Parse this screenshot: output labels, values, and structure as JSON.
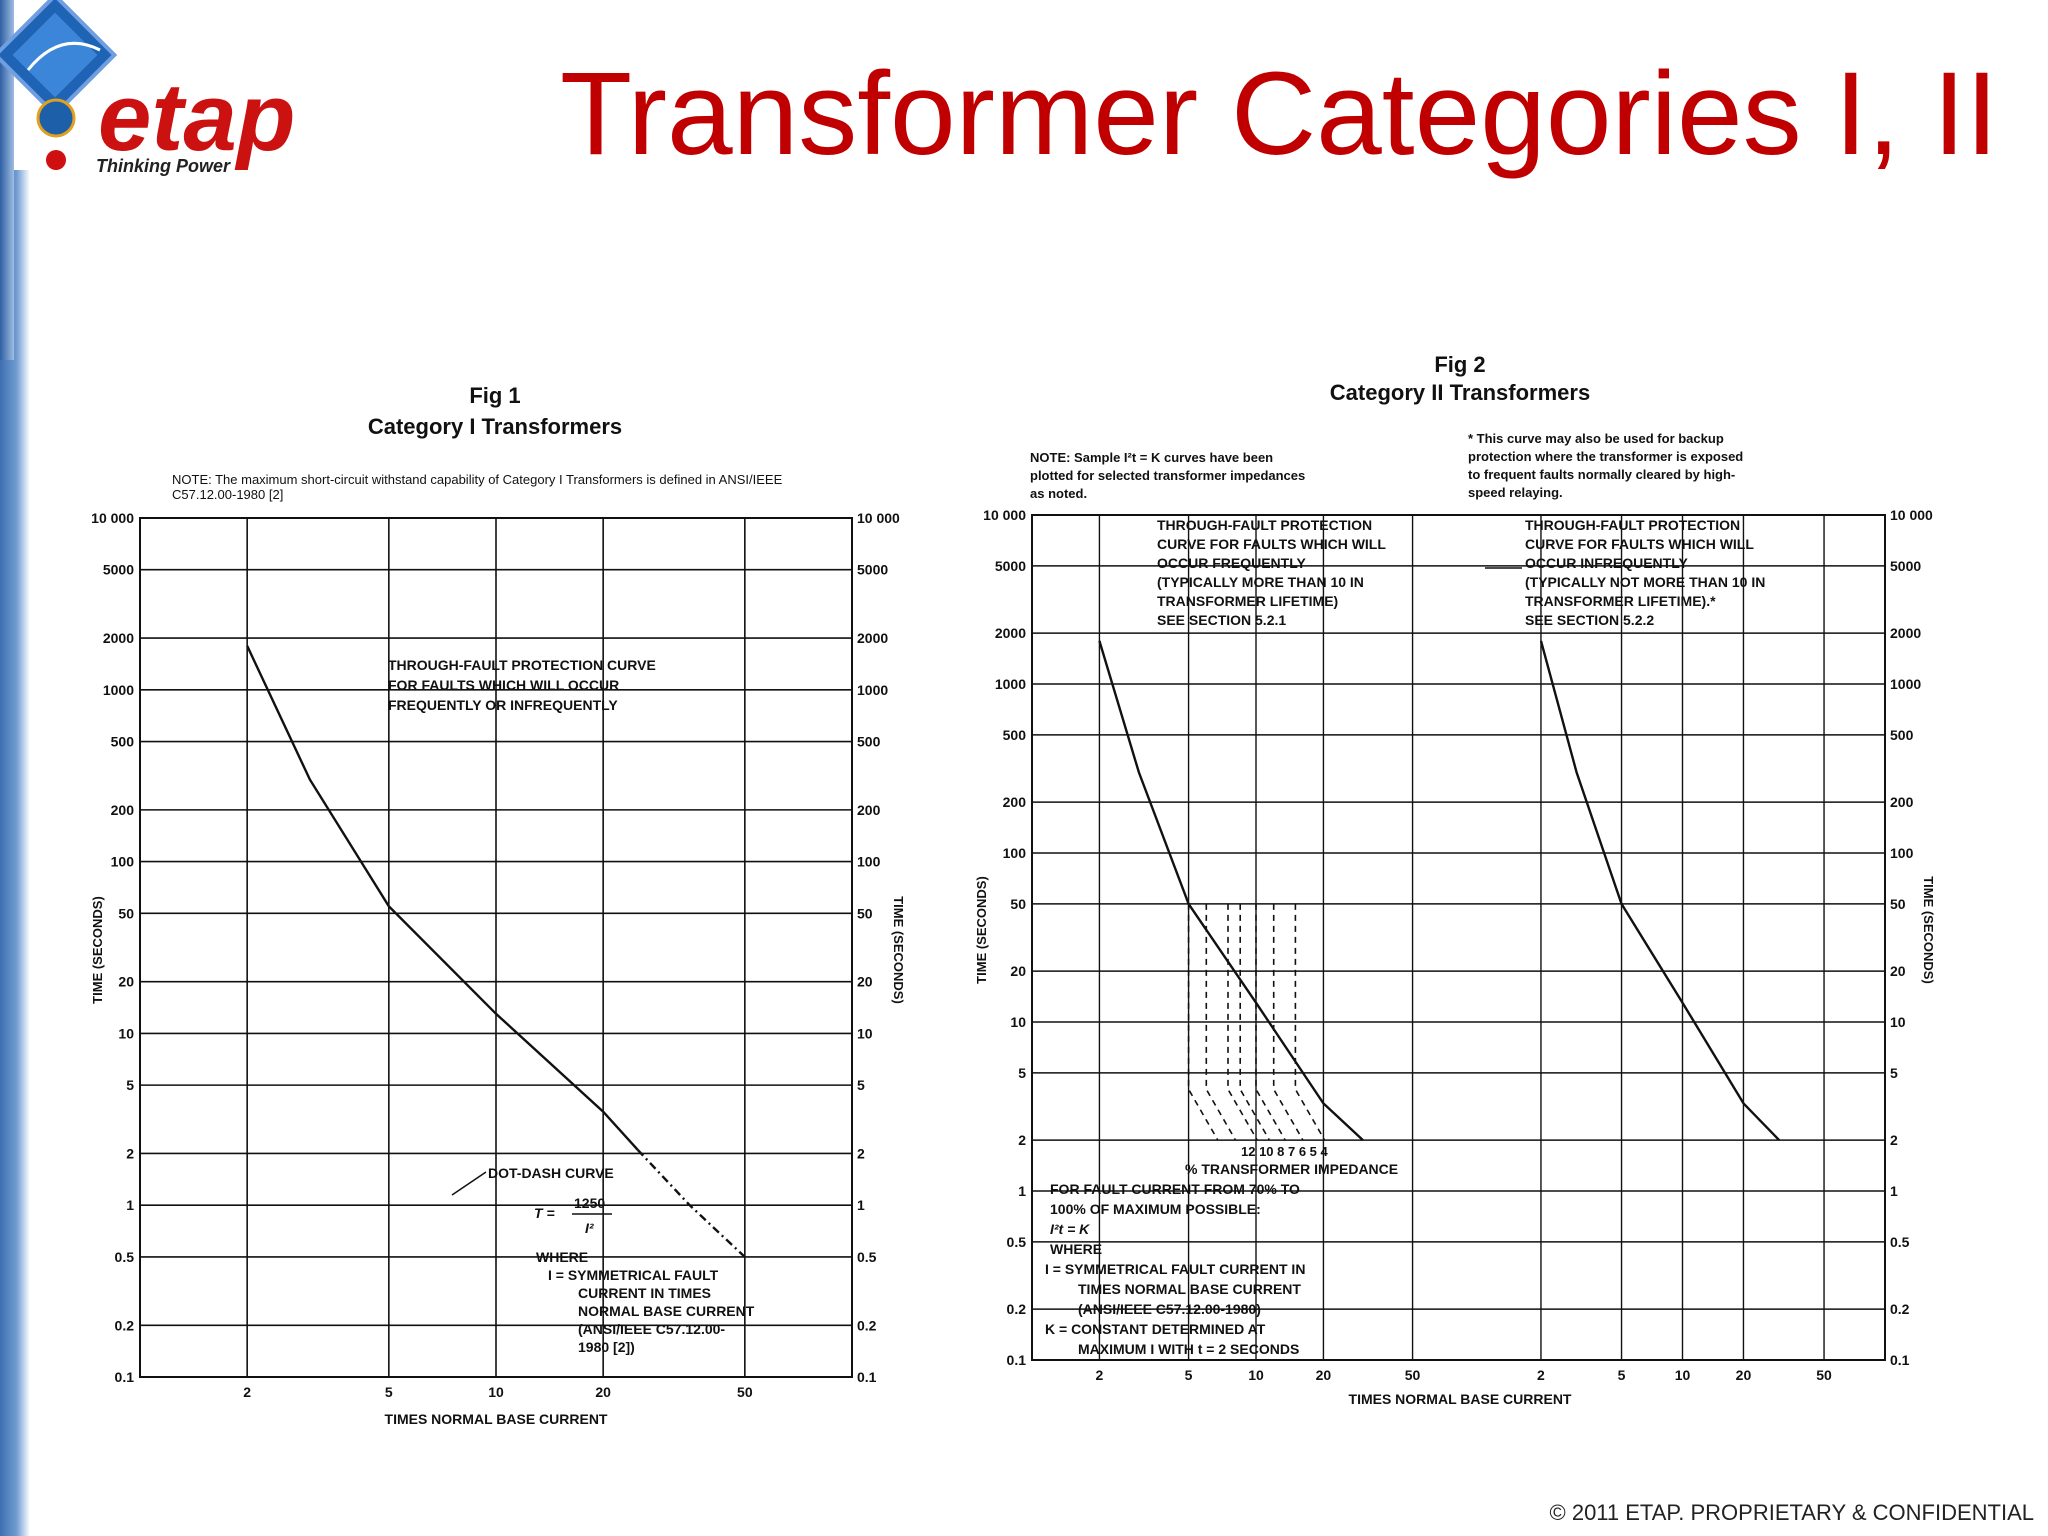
{
  "slide": {
    "title": "Transformer Categories I, II",
    "footer": "© 2011 ETAP. PROPRIETARY & CONFIDENTIAL",
    "logo_text": "etap",
    "logo_tagline": "Thinking Power",
    "title_color": "#c00000",
    "accent_color": "#3d6fb0"
  },
  "chart_data": [
    {
      "type": "line",
      "fig_label": "Fig 1",
      "title": "Category I Transformers",
      "note": "NOTE: The maximum short-circuit withstand capability of Category I Transformers is defined in ANSI/IEEE C57.12.00-1980 [2]",
      "xlabel": "TIMES NORMAL BASE CURRENT",
      "ylabel_left": "TIME (SECONDS)",
      "ylabel_right": "TIME (SECONDS)",
      "x_scale": "log",
      "y_scale": "log",
      "xlim": [
        1,
        100
      ],
      "ylim": [
        0.1,
        10000
      ],
      "x_ticks": [
        "2",
        "5",
        "10",
        "20",
        "50"
      ],
      "y_ticks_left": [
        "10 000",
        "5000",
        "2000",
        "1000",
        "500",
        "200",
        "100",
        "50",
        "20",
        "10",
        "5",
        "2",
        "1",
        "0.5",
        "0.2",
        "0.1"
      ],
      "y_ticks_right": [
        "10 000",
        "5000",
        "2000",
        "1000",
        "500",
        "200",
        "100",
        "50",
        "20",
        "10",
        "5",
        "2",
        "1",
        "0.5",
        "0.2",
        "0.1"
      ],
      "grid": true,
      "series": [
        {
          "style": "solid",
          "points": [
            [
              2,
              1800
            ],
            [
              3,
              300
            ],
            [
              5,
              55
            ],
            [
              10,
              13
            ],
            [
              20,
              3.5
            ],
            [
              25,
              2.1
            ]
          ]
        },
        {
          "style": "dotdash",
          "points": [
            [
              25,
              2.1
            ],
            [
              35,
              1.0
            ],
            [
              50,
              0.5
            ]
          ]
        }
      ],
      "annotations": {
        "curve_label": [
          "THROUGH-FAULT PROTECTION CURVE",
          "FOR FAULTS WHICH WILL OCCUR",
          "FREQUENTLY OR INFREQUENTLY"
        ],
        "dotdash_label": "DOT-DASH CURVE",
        "formula_T": "T =",
        "formula_num": "1250",
        "formula_den": "I²",
        "where_lines": [
          "WHERE",
          "I = SYMMETRICAL FAULT",
          "CURRENT IN TIMES",
          "NORMAL BASE CURRENT",
          "(ANSI/IEEE C57.12.00-",
          "1980 [2])"
        ]
      }
    },
    {
      "type": "line",
      "fig_label": "Fig 2",
      "title": "Category II Transformers",
      "note": [
        "NOTE: Sample I²t = K curves have been",
        "plotted for selected transformer impedances",
        "as noted."
      ],
      "footnote": [
        "* This curve may also be used for backup",
        "protection where the transformer is exposed",
        "to frequent faults normally cleared by high-",
        "speed relaying."
      ],
      "xlabel": "TIMES NORMAL BASE CURRENT",
      "ylabel_left": "TIME (SECONDS)",
      "ylabel_right": "TIME (SECONDS)",
      "x_scale": "log",
      "y_scale": "log",
      "ylim": [
        0.1,
        10000
      ],
      "x_ticks_left_panel": [
        "2",
        "5",
        "10",
        "20",
        "50"
      ],
      "x_ticks_right_panel": [
        "2",
        "5",
        "10",
        "20",
        "50"
      ],
      "y_ticks_left": [
        "10 000",
        "5000",
        "2000",
        "1000",
        "500",
        "200",
        "100",
        "50",
        "20",
        "10",
        "5",
        "2",
        "1",
        "0.5",
        "0.2",
        "0.1"
      ],
      "y_ticks_right": [
        "10 000",
        "5000",
        "2000",
        "1000",
        "500",
        "200",
        "100",
        "50",
        "20",
        "10",
        "5",
        "2",
        "1",
        "0.5",
        "0.2",
        "0.1"
      ],
      "grid": true,
      "panels": [
        {
          "label": [
            "THROUGH-FAULT PROTECTION",
            "CURVE FOR FAULTS WHICH WILL",
            "OCCUR FREQUENTLY",
            "(TYPICALLY MORE THAN 10 IN",
            "TRANSFORMER LIFETIME)",
            "SEE SECTION 5.2.1"
          ],
          "curve": [
            [
              2,
              1800
            ],
            [
              3,
              300
            ],
            [
              5,
              50
            ],
            [
              10,
              13
            ],
            [
              20,
              3.3
            ],
            [
              30,
              2.0
            ]
          ],
          "impedance_curves": [
            {
              "impedance_pct": 12,
              "x_drop": 5
            },
            {
              "impedance_pct": 10,
              "x_drop": 6
            },
            {
              "impedance_pct": 8,
              "x_drop": 7.5
            },
            {
              "impedance_pct": 7,
              "x_drop": 8.5
            },
            {
              "impedance_pct": 6,
              "x_drop": 10
            },
            {
              "impedance_pct": 5,
              "x_drop": 12
            },
            {
              "impedance_pct": 4,
              "x_drop": 15
            }
          ],
          "impedance_numbers": "12 10 8 7 6 5 4",
          "impedance_label": "% TRANSFORMER IMPEDANCE"
        },
        {
          "label": [
            "THROUGH-FAULT PROTECTION",
            "CURVE FOR FAULTS WHICH WILL",
            "OCCUR INFREQUENTLY",
            "(TYPICALLY NOT MORE THAN 10 IN",
            "TRANSFORMER LIFETIME).*",
            "SEE SECTION 5.2.2"
          ],
          "curve": [
            [
              2,
              1800
            ],
            [
              3,
              300
            ],
            [
              5,
              50
            ],
            [
              10,
              13
            ],
            [
              20,
              3.3
            ],
            [
              30,
              2.0
            ]
          ]
        }
      ],
      "lower_notes": [
        "FOR FAULT CURRENT FROM 70% TO",
        "100% OF MAXIMUM POSSIBLE:",
        "I²t = K",
        "WHERE",
        "I = SYMMETRICAL FAULT CURRENT IN",
        "TIMES NORMAL BASE CURRENT",
        "(ANSI/IEEE C57.12.00-1980)",
        "K = CONSTANT DETERMINED AT",
        "MAXIMUM I WITH t = 2 SECONDS"
      ]
    }
  ]
}
